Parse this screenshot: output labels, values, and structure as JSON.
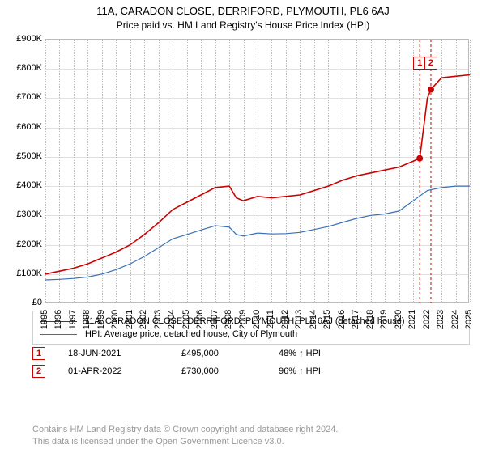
{
  "title": "11A, CARADON CLOSE, DERRIFORD, PLYMOUTH, PL6 6AJ",
  "subtitle": "Price paid vs. HM Land Registry's House Price Index (HPI)",
  "chart": {
    "type": "line",
    "background_color": "#ffffff",
    "grid_color": "#e0e0e0",
    "axis_color": "#bbbbbb",
    "xlim": [
      1995,
      2025
    ],
    "ylim": [
      0,
      900000
    ],
    "ytick_step": 100000,
    "ytick_labels": [
      "£0",
      "£100K",
      "£200K",
      "£300K",
      "£400K",
      "£500K",
      "£600K",
      "£700K",
      "£800K",
      "£900K"
    ],
    "xticks": [
      1995,
      1996,
      1997,
      1998,
      1999,
      2000,
      2001,
      2002,
      2003,
      2004,
      2005,
      2006,
      2007,
      2008,
      2009,
      2010,
      2011,
      2012,
      2013,
      2014,
      2015,
      2016,
      2017,
      2018,
      2019,
      2020,
      2021,
      2022,
      2023,
      2024,
      2025
    ],
    "label_fontsize": 11,
    "series": [
      {
        "id": "price_paid",
        "label": "11A, CARADON CLOSE, DERRIFORD, PLYMOUTH, PL6 6AJ (detached house)",
        "color": "#cc0000",
        "line_width": 1.6,
        "x": [
          1995,
          1996,
          1997,
          1998,
          1999,
          2000,
          2001,
          2002,
          2003,
          2004,
          2005,
          2006,
          2007,
          2008,
          2008.5,
          2009,
          2010,
          2011,
          2012,
          2013,
          2014,
          2015,
          2016,
          2017,
          2018,
          2019,
          2020,
          2021,
          2021.46,
          2022,
          2022.25,
          2023,
          2024,
          2025
        ],
        "y": [
          100000,
          110000,
          120000,
          135000,
          155000,
          175000,
          200000,
          235000,
          275000,
          320000,
          345000,
          370000,
          395000,
          400000,
          360000,
          350000,
          365000,
          360000,
          365000,
          370000,
          385000,
          400000,
          420000,
          435000,
          445000,
          455000,
          465000,
          485000,
          495000,
          700000,
          730000,
          770000,
          775000,
          780000
        ]
      },
      {
        "id": "hpi",
        "label": "HPI: Average price, detached house, City of Plymouth",
        "color": "#3a6fb7",
        "line_width": 1.2,
        "x": [
          1995,
          1996,
          1997,
          1998,
          1999,
          2000,
          2001,
          2002,
          2003,
          2004,
          2005,
          2006,
          2007,
          2008,
          2008.5,
          2009,
          2010,
          2011,
          2012,
          2013,
          2014,
          2015,
          2016,
          2017,
          2018,
          2019,
          2020,
          2021,
          2022,
          2023,
          2024,
          2025
        ],
        "y": [
          80000,
          82000,
          85000,
          90000,
          100000,
          115000,
          135000,
          160000,
          190000,
          220000,
          235000,
          250000,
          265000,
          260000,
          235000,
          230000,
          240000,
          237000,
          238000,
          242000,
          252000,
          262000,
          276000,
          290000,
          300000,
          305000,
          315000,
          350000,
          385000,
          395000,
          400000,
          400000
        ]
      }
    ],
    "event_lines": [
      {
        "x": 2021.46,
        "color": "#cc0000",
        "dash": "3,3"
      },
      {
        "x": 2022.25,
        "color": "#cc0000",
        "dash": "3,3"
      }
    ],
    "markers": [
      {
        "label": "1",
        "x": 2021.46,
        "y": 495000,
        "color": "#cc0000",
        "label_x": 2021.46,
        "label_top_y": 820000
      },
      {
        "label": "2",
        "x": 2022.25,
        "y": 730000,
        "color": "#cc0000",
        "label_x": 2022.25,
        "label_top_y": 820000
      }
    ]
  },
  "legend": {
    "border_color": "#d0d0d0"
  },
  "data_points": [
    {
      "label": "1",
      "color": "#cc0000",
      "date": "18-JUN-2021",
      "price": "£495,000",
      "delta": "48% ↑ HPI"
    },
    {
      "label": "2",
      "color": "#cc0000",
      "date": "01-APR-2022",
      "price": "£730,000",
      "delta": "96% ↑ HPI"
    }
  ],
  "footer": {
    "line1": "Contains HM Land Registry data © Crown copyright and database right 2024.",
    "line2": "This data is licensed under the Open Government Licence v3.0."
  }
}
